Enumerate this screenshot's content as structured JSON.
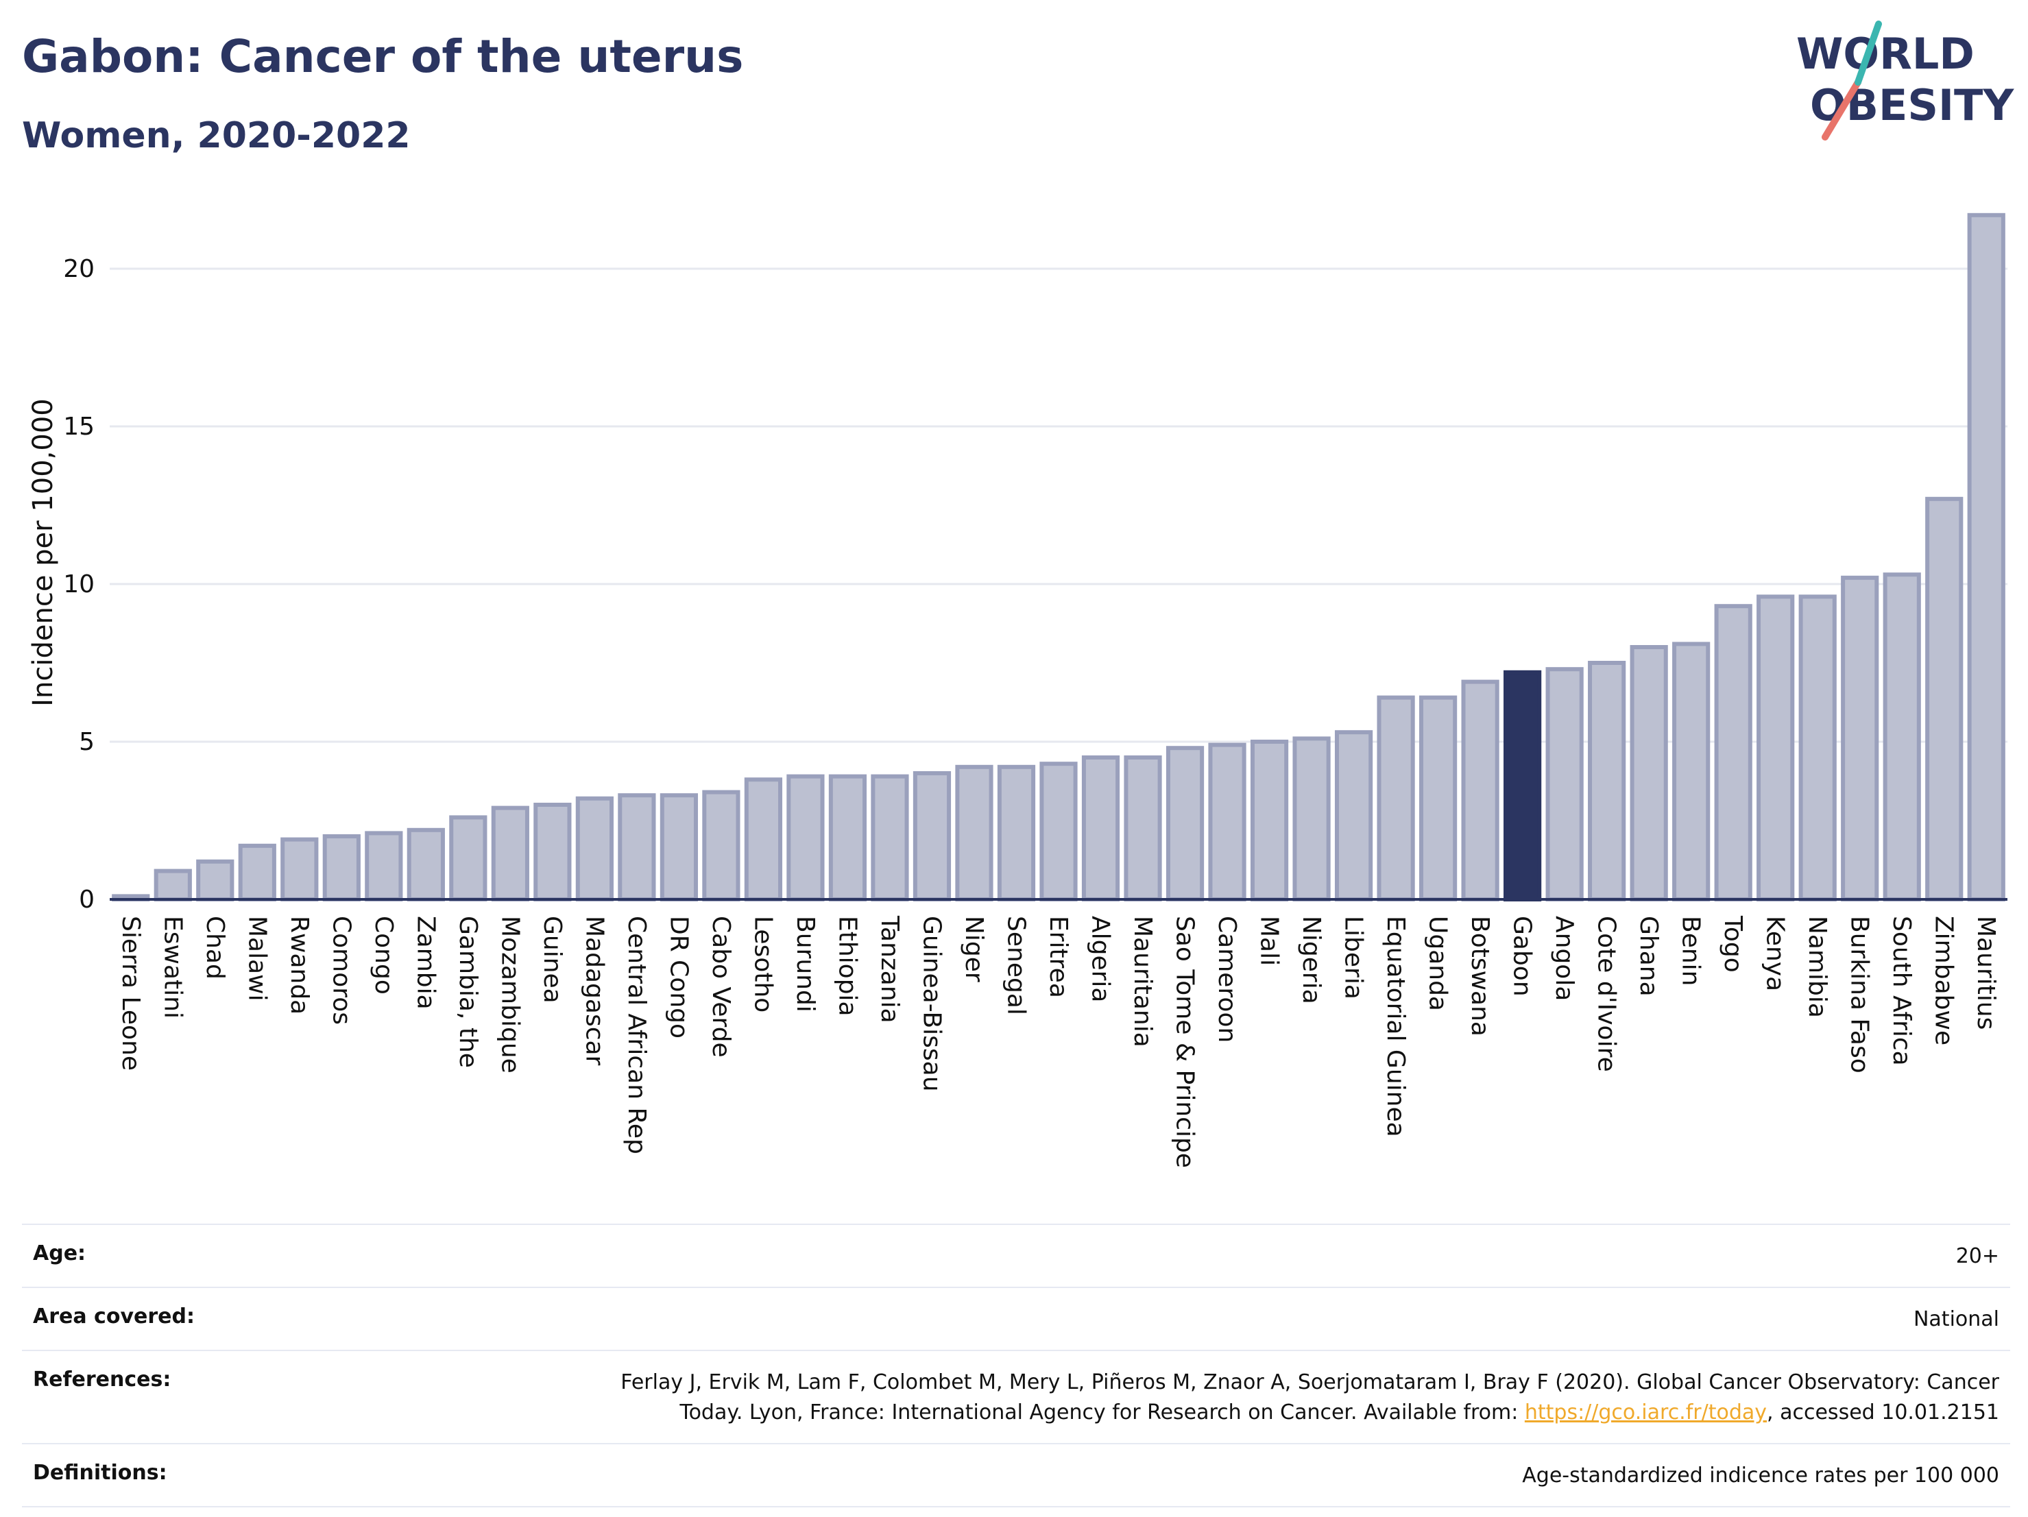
{
  "header": {
    "title": "Gabon: Cancer of the uterus",
    "subtitle": "Women, 2020-2022"
  },
  "logo": {
    "line1": "WORLD",
    "line2": "OBESITY",
    "colors": [
      "#2b3561",
      "#e8746a",
      "#3bb6b0"
    ]
  },
  "chart_data": {
    "type": "bar",
    "ylabel": "Incidence per 100,000",
    "xlabel": "",
    "ylim": [
      0,
      22
    ],
    "yticks": [
      0,
      5,
      10,
      15,
      20
    ],
    "grid": true,
    "highlight": "Gabon",
    "colors": {
      "bar": "#bcc0d1",
      "bar_edge": "#9aa0bc",
      "highlight": "#2b3561",
      "axis": "#2b3561",
      "grid": "#e6e8ef"
    },
    "categories": [
      "Sierra Leone",
      "Eswatini",
      "Chad",
      "Malawi",
      "Rwanda",
      "Comoros",
      "Congo",
      "Zambia",
      "Gambia, the",
      "Mozambique",
      "Guinea",
      "Madagascar",
      "Central African Rep",
      "DR Congo",
      "Cabo Verde",
      "Lesotho",
      "Burundi",
      "Ethiopia",
      "Tanzania",
      "Guinea-Bissau",
      "Niger",
      "Senegal",
      "Eritrea",
      "Algeria",
      "Mauritania",
      "Sao Tome & Principe",
      "Cameroon",
      "Mali",
      "Nigeria",
      "Liberia",
      "Equatorial Guinea",
      "Uganda",
      "Botswana",
      "Gabon",
      "Angola",
      "Cote d'Ivoire",
      "Ghana",
      "Benin",
      "Togo",
      "Kenya",
      "Namibia",
      "Burkina Faso",
      "South Africa",
      "Zimbabwe",
      "Mauritius"
    ],
    "values": [
      0.1,
      0.9,
      1.2,
      1.7,
      1.9,
      2.0,
      2.1,
      2.2,
      2.6,
      2.9,
      3.0,
      3.2,
      3.3,
      3.3,
      3.4,
      3.8,
      3.9,
      3.9,
      3.9,
      4.0,
      4.2,
      4.2,
      4.3,
      4.5,
      4.5,
      4.8,
      4.9,
      5.0,
      5.1,
      5.3,
      6.4,
      6.4,
      6.9,
      7.2,
      7.3,
      7.5,
      8.0,
      8.1,
      9.3,
      9.6,
      9.6,
      10.2,
      10.3,
      12.7,
      21.7
    ]
  },
  "info": {
    "age_label": "Age:",
    "age_value": "20+",
    "area_label": "Area covered:",
    "area_value": "National",
    "ref_label": "References:",
    "ref_text_1": "Ferlay J, Ervik M, Lam F, Colombet M, Mery L, Piñeros M, Znaor A, Soerjomataram I, Bray F (2020). Global Cancer Observatory: Cancer",
    "ref_text_2": "Today. Lyon, France: International Agency for Research on Cancer. Available from: ",
    "ref_link": "https://gco.iarc.fr/today",
    "ref_text_3": ", accessed 10.01.2151",
    "def_label": "Definitions:",
    "def_value": "Age-standardized indicence rates per 100 000"
  }
}
